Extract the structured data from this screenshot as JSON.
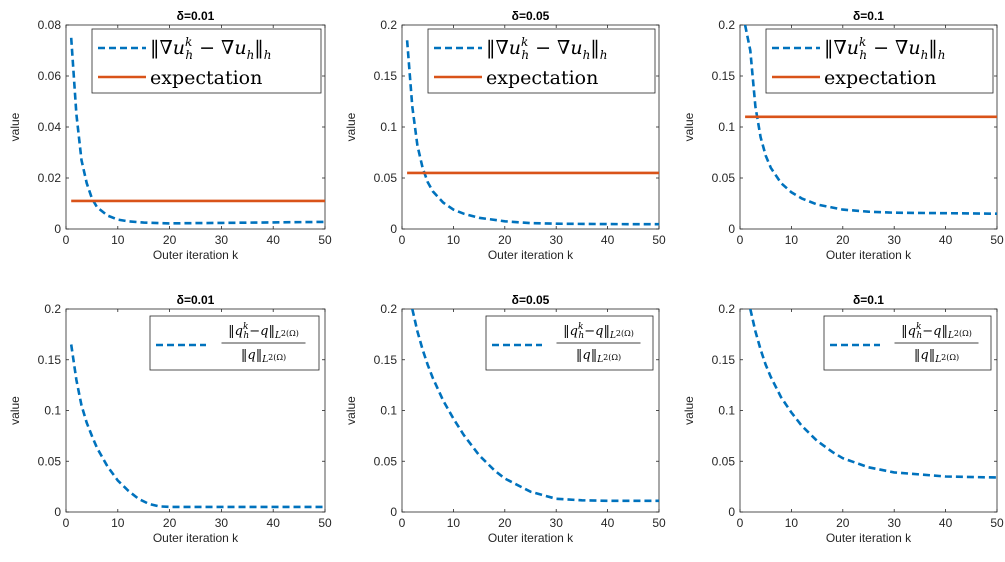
{
  "colors": {
    "series_dashed": "#0072BD",
    "series_solid": "#D95319",
    "axes": "#262626"
  },
  "chart_data": [
    {
      "type": "line",
      "title": "δ=0.01",
      "xlabel": "Outer iteration k",
      "ylabel": "value",
      "xlim": [
        0,
        50
      ],
      "ylim": [
        0,
        0.08
      ],
      "xticks": [
        0,
        10,
        20,
        30,
        40,
        50
      ],
      "yticks": [
        0,
        0.02,
        0.04,
        0.06,
        0.08
      ],
      "ytick_labels": [
        "0",
        "0.02",
        "0.04",
        "0.06",
        "0.08"
      ],
      "legend_placement": "top-right",
      "series": [
        {
          "name": "‖∇u_h^k − ∇u_h‖_h",
          "style": "dashed",
          "legend": "grad",
          "x": [
            1,
            2,
            3,
            4,
            5,
            6,
            8,
            10,
            12,
            15,
            20,
            25,
            30,
            40,
            50
          ],
          "y": [
            0.075,
            0.045,
            0.027,
            0.018,
            0.012,
            0.0085,
            0.0053,
            0.0037,
            0.003,
            0.0025,
            0.0022,
            0.0023,
            0.0024,
            0.0026,
            0.0028
          ]
        },
        {
          "name": "expectation",
          "style": "solid",
          "legend": "text",
          "x": [
            1,
            50
          ],
          "y": [
            0.011,
            0.011
          ]
        }
      ]
    },
    {
      "type": "line",
      "title": "δ=0.05",
      "xlabel": "Outer iteration k",
      "ylabel": "value",
      "xlim": [
        0,
        50
      ],
      "ylim": [
        0,
        0.2
      ],
      "xticks": [
        0,
        10,
        20,
        30,
        40,
        50
      ],
      "yticks": [
        0,
        0.05,
        0.1,
        0.15,
        0.2
      ],
      "ytick_labels": [
        "0",
        "0.05",
        "0.1",
        "0.15",
        "0.2"
      ],
      "legend_placement": "top-right",
      "series": [
        {
          "name": "‖∇u_h^k − ∇u_h‖_h",
          "style": "dashed",
          "legend": "grad",
          "x": [
            1,
            2,
            3,
            4,
            5,
            6,
            8,
            10,
            12,
            15,
            20,
            25,
            30,
            40,
            50
          ],
          "y": [
            0.185,
            0.12,
            0.082,
            0.06,
            0.046,
            0.037,
            0.026,
            0.019,
            0.015,
            0.011,
            0.0075,
            0.0058,
            0.0052,
            0.0048,
            0.0047
          ]
        },
        {
          "name": "expectation",
          "style": "solid",
          "legend": "text",
          "x": [
            1,
            50
          ],
          "y": [
            0.055,
            0.055
          ]
        }
      ]
    },
    {
      "type": "line",
      "title": "δ=0.1",
      "xlabel": "Outer iteration k",
      "ylabel": "value",
      "xlim": [
        0,
        50
      ],
      "ylim": [
        0,
        0.2
      ],
      "xticks": [
        0,
        10,
        20,
        30,
        40,
        50
      ],
      "yticks": [
        0,
        0.05,
        0.1,
        0.15,
        0.2
      ],
      "ytick_labels": [
        "0",
        "0.05",
        "0.1",
        "0.15",
        "0.2"
      ],
      "legend_placement": "top-right",
      "series": [
        {
          "name": "‖∇u_h^k − ∇u_h‖_h",
          "style": "dashed",
          "legend": "grad",
          "x": [
            1,
            2,
            3,
            4,
            5,
            6,
            8,
            10,
            12,
            15,
            20,
            25,
            30,
            40,
            50
          ],
          "y": [
            0.2,
            0.175,
            0.12,
            0.09,
            0.072,
            0.06,
            0.045,
            0.036,
            0.03,
            0.024,
            0.019,
            0.017,
            0.016,
            0.0155,
            0.015
          ]
        },
        {
          "name": "expectation",
          "style": "solid",
          "legend": "text",
          "x": [
            1,
            50
          ],
          "y": [
            0.11,
            0.11
          ]
        }
      ]
    },
    {
      "type": "line",
      "title": "δ=0.01",
      "xlabel": "Outer iteration k",
      "ylabel": "value",
      "xlim": [
        0,
        50
      ],
      "ylim": [
        0,
        0.2
      ],
      "xticks": [
        0,
        10,
        20,
        30,
        40,
        50
      ],
      "yticks": [
        0,
        0.05,
        0.1,
        0.15,
        0.2
      ],
      "ytick_labels": [
        "0",
        "0.05",
        "0.1",
        "0.15",
        "0.2"
      ],
      "legend_placement": "top-right",
      "series": [
        {
          "name": "‖q_h^k − q‖_{L²(Ω)} / ‖q‖_{L²(Ω)}",
          "style": "dashed",
          "legend": "frac",
          "x": [
            1,
            2,
            3,
            4,
            5,
            6,
            8,
            10,
            12,
            14,
            16,
            18,
            20,
            25,
            30,
            40,
            50
          ],
          "y": [
            0.165,
            0.13,
            0.105,
            0.088,
            0.075,
            0.063,
            0.045,
            0.031,
            0.021,
            0.013,
            0.008,
            0.0055,
            0.005,
            0.005,
            0.005,
            0.005,
            0.005
          ]
        }
      ]
    },
    {
      "type": "line",
      "title": "δ=0.05",
      "xlabel": "Outer iteration k",
      "ylabel": "value",
      "xlim": [
        0,
        50
      ],
      "ylim": [
        0,
        0.2
      ],
      "xticks": [
        0,
        10,
        20,
        30,
        40,
        50
      ],
      "yticks": [
        0,
        0.05,
        0.1,
        0.15,
        0.2
      ],
      "ytick_labels": [
        "0",
        "0.05",
        "0.1",
        "0.15",
        "0.2"
      ],
      "legend_placement": "top-right",
      "series": [
        {
          "name": "‖q_h^k − q‖_{L²(Ω)} / ‖q‖_{L²(Ω)}",
          "style": "dashed",
          "legend": "frac",
          "x": [
            2,
            3,
            4,
            5,
            6,
            8,
            10,
            12,
            15,
            18,
            20,
            25,
            30,
            35,
            40,
            50
          ],
          "y": [
            0.2,
            0.178,
            0.16,
            0.145,
            0.132,
            0.11,
            0.092,
            0.076,
            0.056,
            0.041,
            0.033,
            0.02,
            0.013,
            0.0115,
            0.011,
            0.011
          ]
        }
      ]
    },
    {
      "type": "line",
      "title": "δ=0.1",
      "xlabel": "Outer iteration k",
      "ylabel": "value",
      "xlim": [
        0,
        50
      ],
      "ylim": [
        0,
        0.2
      ],
      "xticks": [
        0,
        10,
        20,
        30,
        40,
        50
      ],
      "yticks": [
        0,
        0.05,
        0.1,
        0.15,
        0.2
      ],
      "ytick_labels": [
        "0",
        "0.05",
        "0.1",
        "0.15",
        "0.2"
      ],
      "legend_placement": "top-right",
      "series": [
        {
          "name": "‖q_h^k − q‖_{L²(Ω)} / ‖q‖_{L²(Ω)}",
          "style": "dashed",
          "legend": "frac",
          "x": [
            2,
            3,
            4,
            5,
            6,
            8,
            10,
            12,
            15,
            18,
            20,
            25,
            30,
            40,
            50
          ],
          "y": [
            0.2,
            0.178,
            0.16,
            0.145,
            0.133,
            0.113,
            0.098,
            0.085,
            0.07,
            0.059,
            0.053,
            0.044,
            0.039,
            0.035,
            0.034
          ]
        }
      ]
    }
  ]
}
